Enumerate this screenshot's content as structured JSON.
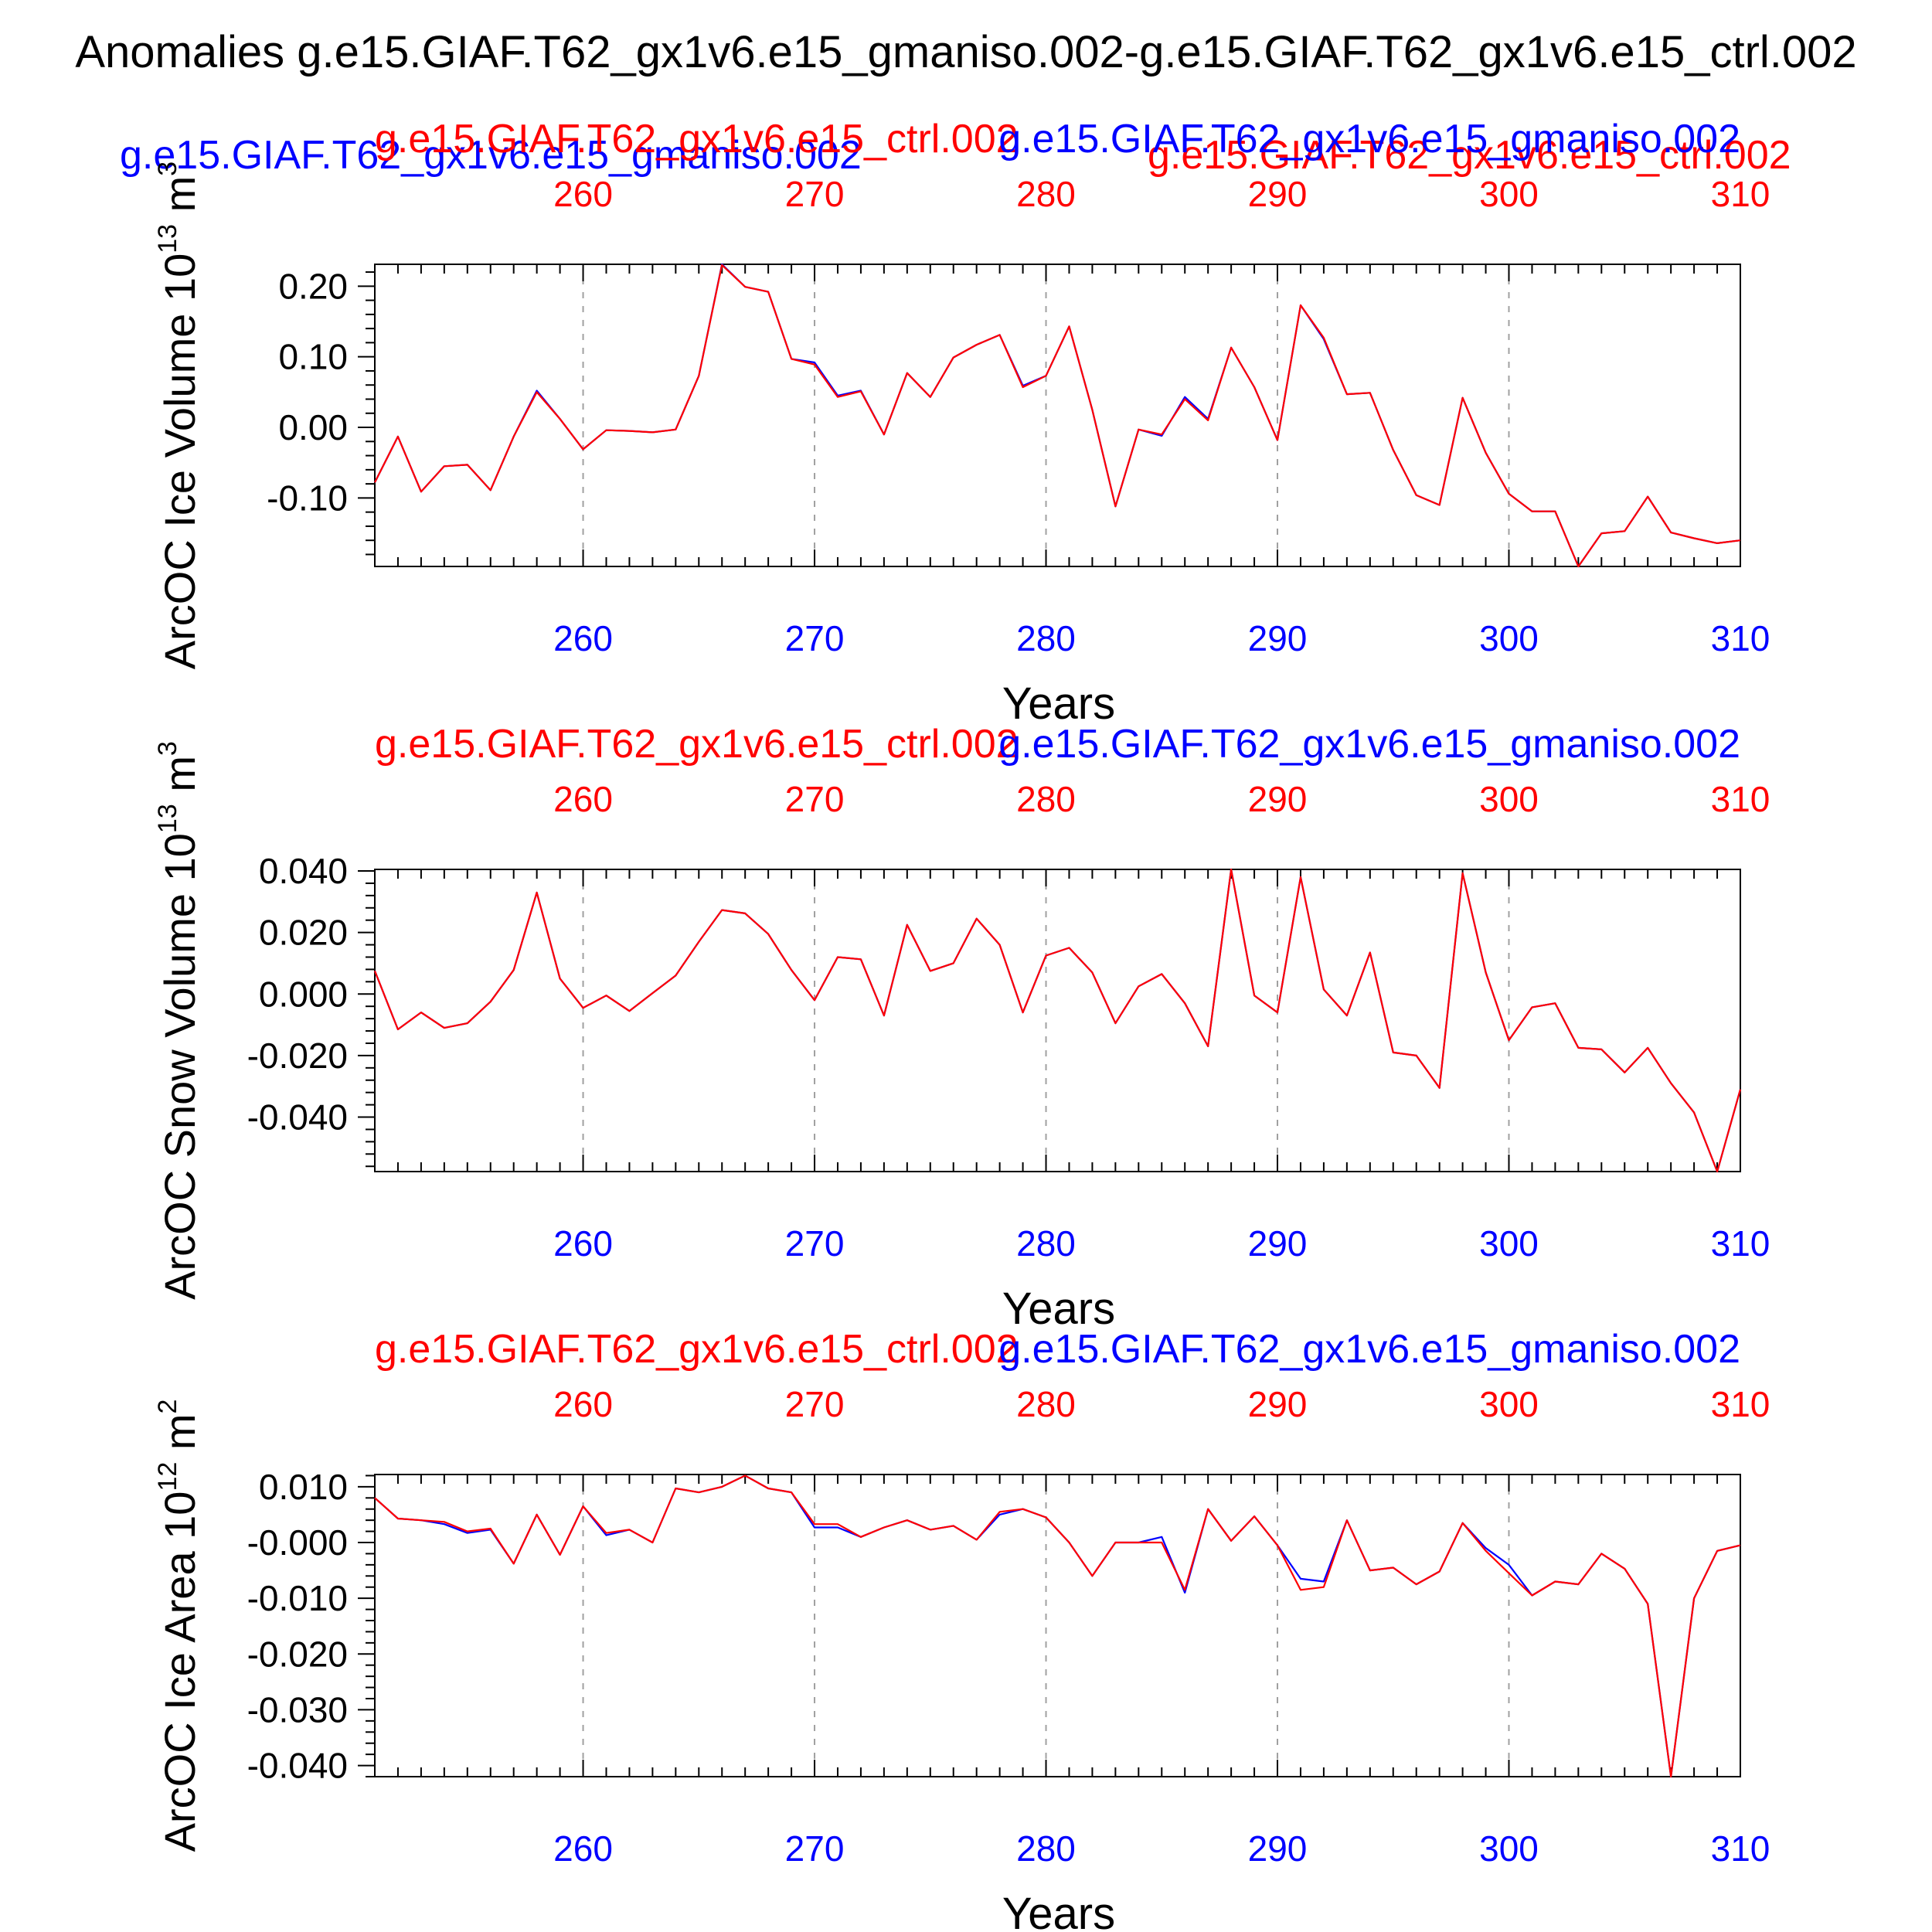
{
  "figure": {
    "main_title": "Anomalies g.e15.GIAF.T62_gx1v6.e15_gmaniso.002-g.e15.GIAF.T62_gx1v6.e15_ctrl.002",
    "legend": {
      "case_a": "g.e15.GIAF.T62_gx1v6.e15_gmaniso.002",
      "case_b": "g.e15.GIAF.T62_gx1v6.e15_ctrl.002"
    }
  },
  "colors": {
    "case_a": "#0000ff",
    "case_b": "#ff0000",
    "axis": "#000000",
    "grid": "#a0a0a0"
  },
  "chart_data": [
    {
      "type": "line",
      "panel": "ice-volume",
      "title_left": "g.e15.GIAF.T62_gx1v6.e15_ctrl.002",
      "title_right": "g.e15.GIAF.T62_gx1v6.e15_gmaniso.002",
      "ylabel": "ArcOC Ice Volume 10^13 m^3",
      "ylabel_parts": {
        "base": "ArcOC Ice Volume 10",
        "exp": "13",
        "unit": " m",
        "unit_exp": "3"
      },
      "xlabel": "Years",
      "xlim": [
        251,
        310
      ],
      "ylim": [
        -0.197,
        0.231
      ],
      "yticks": [
        -0.1,
        0.0,
        0.1,
        0.2
      ],
      "ytick_labels": [
        "-0.10",
        "0.00",
        "0.10",
        "0.20"
      ],
      "xticks": [
        260,
        270,
        280,
        290,
        300,
        310
      ],
      "xtick_labels": [
        "260",
        "270",
        "280",
        "290",
        "300",
        "310"
      ],
      "x": [
        251,
        252,
        253,
        254,
        255,
        256,
        257,
        258,
        259,
        260,
        261,
        262,
        263,
        264,
        265,
        266,
        267,
        268,
        269,
        270,
        271,
        272,
        273,
        274,
        275,
        276,
        277,
        278,
        279,
        280,
        281,
        282,
        283,
        284,
        285,
        286,
        287,
        288,
        289,
        290,
        291,
        292,
        293,
        294,
        295,
        296,
        297,
        298,
        299,
        300,
        301,
        302,
        303,
        304,
        305,
        306,
        307,
        308,
        309,
        310
      ],
      "series": [
        {
          "name": "g.e15.GIAF.T62_gx1v6.e15_gmaniso.002",
          "color": "#0000ff",
          "values": [
            -0.078,
            -0.013,
            -0.091,
            -0.055,
            -0.053,
            -0.089,
            -0.013,
            0.052,
            0.012,
            -0.031,
            -0.004,
            -0.005,
            -0.007,
            -0.003,
            0.073,
            0.231,
            0.199,
            0.192,
            0.097,
            0.092,
            0.045,
            0.052,
            -0.01,
            0.077,
            0.043,
            0.099,
            0.117,
            0.131,
            0.059,
            0.073,
            0.143,
            0.025,
            -0.112,
            -0.003,
            -0.012,
            0.043,
            0.012,
            0.113,
            0.057,
            -0.018,
            0.173,
            0.125,
            0.047,
            0.049,
            -0.032,
            -0.096,
            -0.11,
            0.042,
            -0.036,
            -0.094,
            -0.119,
            -0.119,
            -0.197,
            -0.15,
            -0.147,
            -0.098,
            -0.149,
            -0.157,
            -0.164,
            -0.16
          ]
        },
        {
          "name": "g.e15.GIAF.T62_gx1v6.e15_ctrl.002",
          "color": "#ff0000",
          "values": [
            -0.078,
            -0.013,
            -0.091,
            -0.055,
            -0.053,
            -0.089,
            -0.013,
            0.05,
            0.012,
            -0.031,
            -0.004,
            -0.005,
            -0.007,
            -0.003,
            0.073,
            0.23,
            0.199,
            0.192,
            0.097,
            0.089,
            0.043,
            0.051,
            -0.01,
            0.077,
            0.043,
            0.099,
            0.117,
            0.131,
            0.057,
            0.073,
            0.143,
            0.025,
            -0.112,
            -0.003,
            -0.01,
            0.04,
            0.01,
            0.113,
            0.057,
            -0.018,
            0.173,
            0.127,
            0.047,
            0.049,
            -0.032,
            -0.096,
            -0.11,
            0.042,
            -0.036,
            -0.094,
            -0.119,
            -0.119,
            -0.197,
            -0.15,
            -0.147,
            -0.098,
            -0.149,
            -0.157,
            -0.164,
            -0.16
          ]
        }
      ]
    },
    {
      "type": "line",
      "panel": "snow-volume",
      "title_left": "g.e15.GIAF.T62_gx1v6.e15_ctrl.002",
      "title_right": "g.e15.GIAF.T62_gx1v6.e15_gmaniso.002",
      "ylabel": "ArcOC Snow Volume 10^13 m^3",
      "ylabel_parts": {
        "base": "ArcOC Snow Volume 10",
        "exp": "13",
        "unit": " m",
        "unit_exp": "3"
      },
      "xlabel": "Years",
      "xlim": [
        251,
        310
      ],
      "ylim": [
        -0.0577,
        0.0405
      ],
      "yticks": [
        -0.04,
        -0.02,
        0.0,
        0.02,
        0.04
      ],
      "ytick_labels": [
        "-0.040",
        "-0.020",
        "0.000",
        "0.020",
        "0.040"
      ],
      "xticks": [
        260,
        270,
        280,
        290,
        300,
        310
      ],
      "xtick_labels": [
        "260",
        "270",
        "280",
        "290",
        "300",
        "310"
      ],
      "x": [
        251,
        252,
        253,
        254,
        255,
        256,
        257,
        258,
        259,
        260,
        261,
        262,
        263,
        264,
        265,
        266,
        267,
        268,
        269,
        270,
        271,
        272,
        273,
        274,
        275,
        276,
        277,
        278,
        279,
        280,
        281,
        282,
        283,
        284,
        285,
        286,
        287,
        288,
        289,
        290,
        291,
        292,
        293,
        294,
        295,
        296,
        297,
        298,
        299,
        300,
        301,
        302,
        303,
        304,
        305,
        306,
        307,
        308,
        309,
        310
      ],
      "series": [
        {
          "name": "g.e15.GIAF.T62_gx1v6.e15_gmaniso.002",
          "color": "#0000ff",
          "values": [
            0.0075,
            -0.0115,
            -0.006,
            -0.011,
            -0.0095,
            -0.0025,
            0.0078,
            0.033,
            0.005,
            -0.0045,
            -0.0005,
            -0.0055,
            0.0003,
            0.006,
            0.017,
            0.0273,
            0.0262,
            0.0195,
            0.0078,
            -0.002,
            0.012,
            0.0113,
            -0.007,
            0.0225,
            0.0075,
            0.01,
            0.0245,
            0.016,
            -0.006,
            0.0125,
            0.015,
            0.007,
            -0.0095,
            0.0025,
            0.0065,
            -0.003,
            -0.017,
            0.0405,
            -0.0005,
            -0.006,
            0.038,
            0.0015,
            -0.007,
            0.0135,
            -0.019,
            -0.02,
            -0.0305,
            0.0393,
            0.007,
            -0.015,
            -0.0043,
            -0.003,
            -0.0175,
            -0.018,
            -0.0255,
            -0.0175,
            -0.029,
            -0.0385,
            -0.0577,
            -0.031
          ]
        },
        {
          "name": "g.e15.GIAF.T62_gx1v6.e15_ctrl.002",
          "color": "#ff0000",
          "values": [
            0.0075,
            -0.0115,
            -0.006,
            -0.011,
            -0.0095,
            -0.0025,
            0.0078,
            0.033,
            0.005,
            -0.0045,
            -0.0005,
            -0.0055,
            0.0003,
            0.006,
            0.017,
            0.0273,
            0.0262,
            0.0195,
            0.0078,
            -0.002,
            0.012,
            0.0113,
            -0.007,
            0.0225,
            0.0075,
            0.01,
            0.0245,
            0.016,
            -0.006,
            0.0125,
            0.015,
            0.007,
            -0.0095,
            0.0025,
            0.0065,
            -0.003,
            -0.017,
            0.0405,
            -0.0005,
            -0.006,
            0.038,
            0.0015,
            -0.007,
            0.0135,
            -0.019,
            -0.02,
            -0.0305,
            0.0393,
            0.007,
            -0.015,
            -0.0043,
            -0.003,
            -0.0175,
            -0.018,
            -0.0255,
            -0.0175,
            -0.029,
            -0.0385,
            -0.0577,
            -0.031
          ]
        }
      ]
    },
    {
      "type": "line",
      "panel": "ice-area",
      "title_left": "g.e15.GIAF.T62_gx1v6.e15_ctrl.002",
      "title_right": "g.e15.GIAF.T62_gx1v6.e15_gmaniso.002",
      "ylabel": "ArcOC Ice Area 10^12 m^2",
      "ylabel_parts": {
        "base": "ArcOC Ice Area 10",
        "exp": "12",
        "unit": " m",
        "unit_exp": "2"
      },
      "xlabel": "Years",
      "xlim": [
        251,
        310
      ],
      "ylim": [
        -0.042,
        0.0122
      ],
      "yticks": [
        -0.04,
        -0.03,
        -0.02,
        -0.01,
        -0.0,
        0.01
      ],
      "ytick_labels": [
        "-0.040",
        "-0.030",
        "-0.020",
        "-0.010",
        "-0.000",
        "0.010"
      ],
      "xticks": [
        260,
        270,
        280,
        290,
        300,
        310
      ],
      "xtick_labels": [
        "260",
        "270",
        "280",
        "290",
        "300",
        "310"
      ],
      "x": [
        251,
        252,
        253,
        254,
        255,
        256,
        257,
        258,
        259,
        260,
        261,
        262,
        263,
        264,
        265,
        266,
        267,
        268,
        269,
        270,
        271,
        272,
        273,
        274,
        275,
        276,
        277,
        278,
        279,
        280,
        281,
        282,
        283,
        284,
        285,
        286,
        287,
        288,
        289,
        290,
        291,
        292,
        293,
        294,
        295,
        296,
        297,
        298,
        299,
        300,
        301,
        302,
        303,
        304,
        305,
        306,
        307,
        308,
        309,
        310
      ],
      "series": [
        {
          "name": "g.e15.GIAF.T62_gx1v6.e15_gmaniso.002",
          "color": "#0000ff",
          "values": [
            0.008,
            0.0043,
            0.004,
            0.0033,
            0.0017,
            0.0023,
            -0.0038,
            0.005,
            -0.0022,
            0.0065,
            0.0013,
            0.0023,
            0.0,
            0.0097,
            0.009,
            0.01,
            0.012,
            0.0097,
            0.009,
            0.0027,
            0.0027,
            0.001,
            0.0027,
            0.004,
            0.0023,
            0.003,
            0.0005,
            0.005,
            0.006,
            0.0045,
            0.0,
            -0.006,
            0.0,
            0.0,
            0.001,
            -0.009,
            0.006,
            0.0003,
            0.0047,
            -0.0005,
            -0.0065,
            -0.007,
            0.004,
            -0.005,
            -0.0045,
            -0.0075,
            -0.0052,
            0.0035,
            -0.001,
            -0.004,
            -0.0095,
            -0.007,
            -0.0075,
            -0.002,
            -0.0047,
            -0.011,
            -0.042,
            -0.01,
            -0.0015,
            -0.0005
          ]
        },
        {
          "name": "g.e15.GIAF.T62_gx1v6.e15_ctrl.002",
          "color": "#ff0000",
          "values": [
            0.008,
            0.0043,
            0.004,
            0.0037,
            0.002,
            0.0025,
            -0.0038,
            0.005,
            -0.0022,
            0.0065,
            0.0017,
            0.0023,
            0.0,
            0.0097,
            0.009,
            0.01,
            0.012,
            0.0097,
            0.009,
            0.0033,
            0.0033,
            0.001,
            0.0027,
            0.004,
            0.0023,
            0.003,
            0.0005,
            0.0055,
            0.006,
            0.0045,
            0.0,
            -0.006,
            0.0,
            0.0,
            0.0,
            -0.0085,
            0.006,
            0.0003,
            0.0047,
            -0.0005,
            -0.0085,
            -0.008,
            0.004,
            -0.005,
            -0.0045,
            -0.0075,
            -0.0052,
            0.0035,
            -0.0015,
            -0.0055,
            -0.0095,
            -0.007,
            -0.0075,
            -0.002,
            -0.0047,
            -0.011,
            -0.042,
            -0.01,
            -0.0015,
            -0.0005
          ]
        }
      ]
    }
  ]
}
